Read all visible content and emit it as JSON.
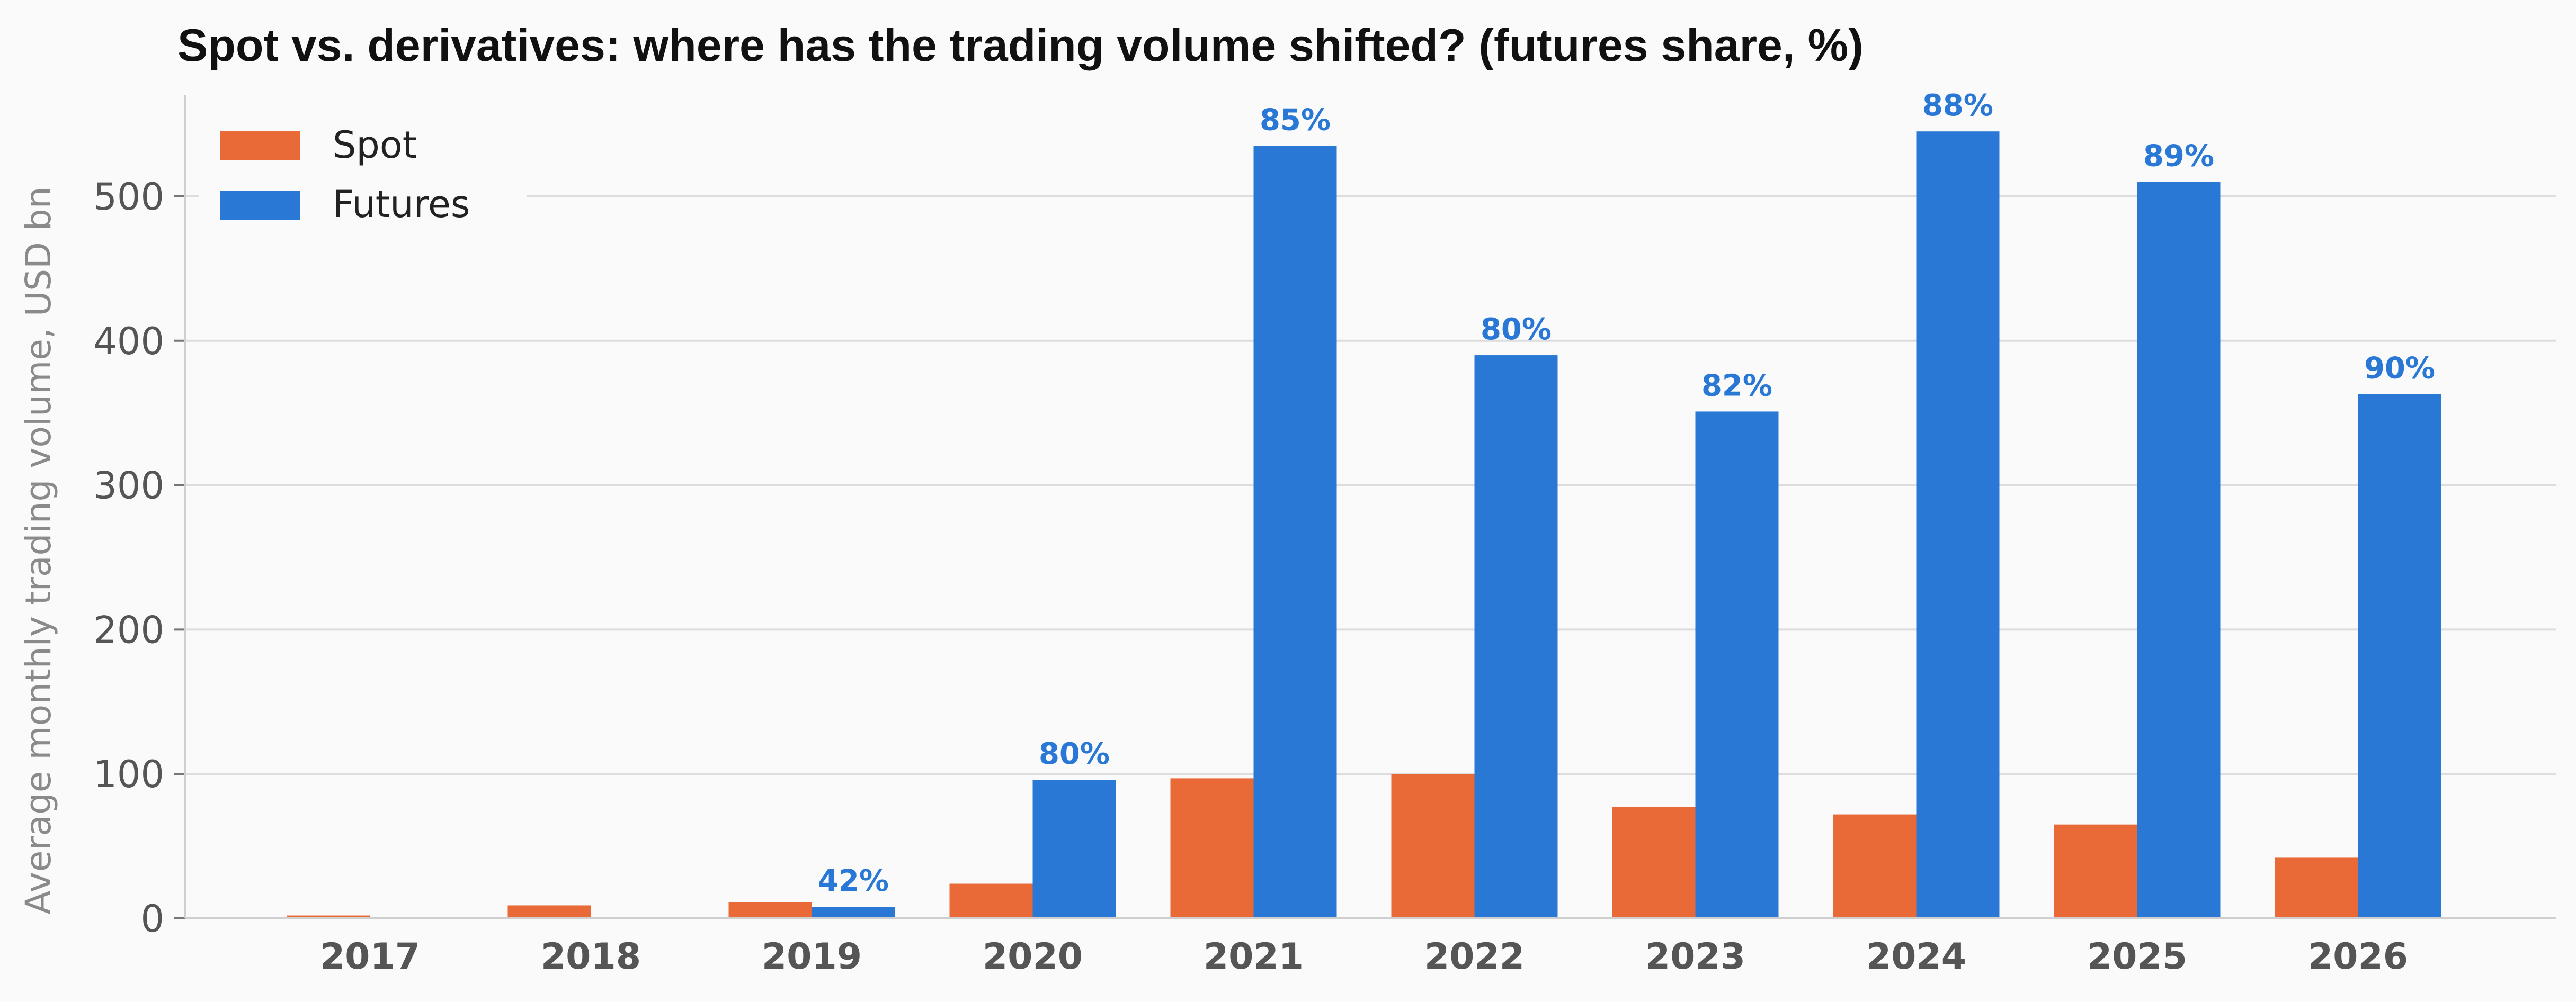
{
  "chart_data": {
    "type": "bar",
    "title": "Spot vs. derivatives: where has the trading volume shifted? (futures share, %)",
    "xlabel": "",
    "ylabel": "Average monthly trading volume, USD bn",
    "categories": [
      "2017",
      "2018",
      "2019",
      "2020",
      "2021",
      "2022",
      "2023",
      "2024",
      "2025",
      "2026"
    ],
    "series": [
      {
        "name": "Spot",
        "color": "#e96a37",
        "values": [
          2,
          9,
          11,
          24,
          97,
          100,
          77,
          72,
          65,
          42
        ]
      },
      {
        "name": "Futures",
        "color": "#2a78d6",
        "values": [
          0,
          0,
          8,
          96,
          535,
          390,
          351,
          545,
          510,
          363
        ],
        "data_labels": [
          null,
          null,
          "42%",
          "80%",
          "85%",
          "80%",
          "82%",
          "88%",
          "89%",
          "90%"
        ]
      }
    ],
    "ylim": [
      0,
      570
    ],
    "yticks": [
      0,
      100,
      200,
      300,
      400,
      500
    ],
    "grid": true,
    "legend_position": "top-left",
    "colors": {
      "data_label": "#2a78d6",
      "tick_label": "#555555",
      "grid": "#dddddd",
      "axis": "#cfcfcf",
      "background": "#fafafa"
    }
  }
}
